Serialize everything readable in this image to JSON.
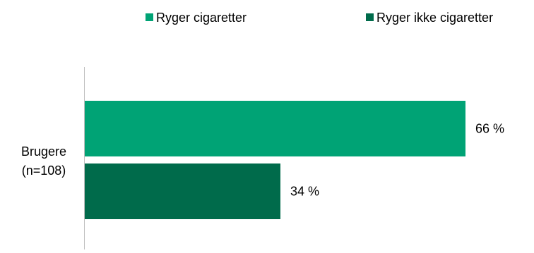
{
  "chart_data": {
    "type": "bar",
    "orientation": "horizontal",
    "categories": [
      "Brugere (n=108)"
    ],
    "category_label_lines": [
      "Brugere",
      "(n=108)"
    ],
    "series": [
      {
        "name": "Ryger cigaretter",
        "values": [
          66
        ],
        "value_labels": [
          "66 %"
        ],
        "color": "#00a375"
      },
      {
        "name": "Ryger ikke cigaretter",
        "values": [
          34
        ],
        "value_labels": [
          "34 %"
        ],
        "color": "#006b4b"
      }
    ],
    "xlim": [
      0,
      100
    ],
    "unit": "%",
    "legend_position": "top",
    "grid": false,
    "title": "",
    "xlabel": "",
    "ylabel": ""
  }
}
